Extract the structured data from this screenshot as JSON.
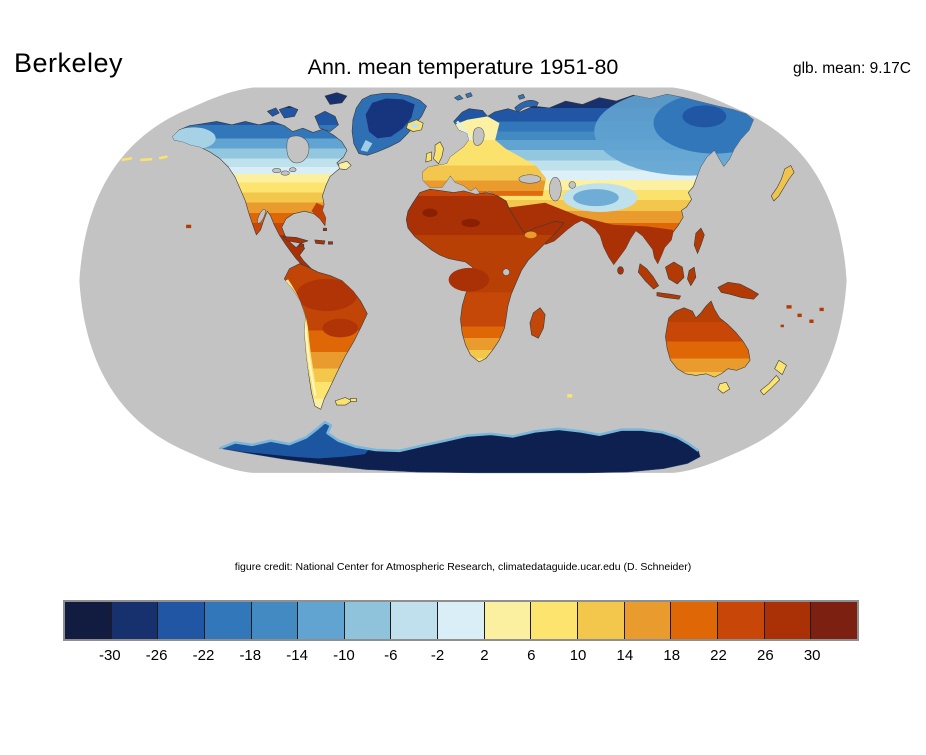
{
  "header": {
    "brand": "Berkeley",
    "title": "Ann. mean temperature 1951-80",
    "global_mean_label": "glb. mean: 9.17C"
  },
  "map": {
    "projection": "robinson",
    "description": "Global annual mean surface temperature over land; oceans and missing data shown gray",
    "ocean_color": "#c3c3c3",
    "background_color": "#ffffff"
  },
  "credit": "figure credit: National Center for Atmospheric Research, climatedataguide.ucar.edu (D. Schneider)",
  "colorbar": {
    "unit": "C",
    "tick_labels": [
      "-30",
      "-26",
      "-22",
      "-18",
      "-14",
      "-10",
      "-6",
      "-2",
      "2",
      "6",
      "10",
      "14",
      "18",
      "22",
      "26",
      "30"
    ],
    "colors": [
      "#111c40",
      "#16316e",
      "#2056a3",
      "#3377bb",
      "#4389c2",
      "#62a4d1",
      "#8fc3dc",
      "#bfe0ec",
      "#daeef7",
      "#fbf0a0",
      "#fce46e",
      "#f3c64c",
      "#e99b2d",
      "#df6706",
      "#c84708",
      "#a93105",
      "#7c2012"
    ],
    "border_color": "#8f8f8f",
    "separator_color": "#1c1c1c"
  },
  "chart_data": {
    "type": "heatmap",
    "title": "Ann. mean temperature 1951-80",
    "legend_boundaries_c": [
      -30,
      -26,
      -22,
      -18,
      -14,
      -10,
      -6,
      -2,
      2,
      6,
      10,
      14,
      18,
      22,
      26,
      30
    ],
    "palette": [
      "#111c40",
      "#16316e",
      "#2056a3",
      "#3377bb",
      "#4389c2",
      "#62a4d1",
      "#8fc3dc",
      "#bfe0ec",
      "#daeef7",
      "#fbf0a0",
      "#fce46e",
      "#f3c64c",
      "#e99b2d",
      "#df6706",
      "#c84708",
      "#a93105",
      "#7c2012"
    ],
    "global_mean_c": 9.17,
    "legend_position": "bottom"
  }
}
